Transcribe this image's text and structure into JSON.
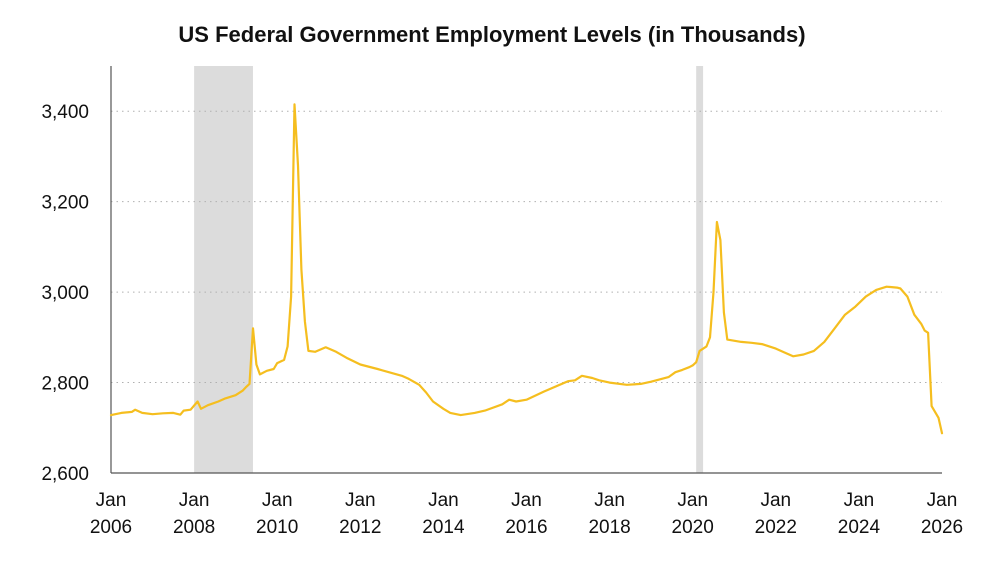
{
  "colors": {
    "line": "#F5BE1F",
    "recession": "#DCDCDC",
    "grid": "#B0B0B0",
    "axis": "#555555",
    "text": "#111111"
  },
  "chart_data": {
    "type": "line",
    "title": "US Federal Government Employment Levels (in Thousands)",
    "xlabel": "",
    "ylabel": "",
    "x_range": [
      "2006-01",
      "2026-01"
    ],
    "ylim": [
      2600,
      3500
    ],
    "grid": "horizontal dotted",
    "y_ticks": [
      {
        "value": 2600,
        "label": "2,600"
      },
      {
        "value": 2800,
        "label": "2,800"
      },
      {
        "value": 3000,
        "label": "3,000"
      },
      {
        "value": 3200,
        "label": "3,200"
      },
      {
        "value": 3400,
        "label": "3,400"
      }
    ],
    "x_ticks": [
      {
        "date": "2006-01",
        "month": "Jan",
        "year": "2006"
      },
      {
        "date": "2008-01",
        "month": "Jan",
        "year": "2008"
      },
      {
        "date": "2010-01",
        "month": "Jan",
        "year": "2010"
      },
      {
        "date": "2012-01",
        "month": "Jan",
        "year": "2012"
      },
      {
        "date": "2014-01",
        "month": "Jan",
        "year": "2014"
      },
      {
        "date": "2016-01",
        "month": "Jan",
        "year": "2016"
      },
      {
        "date": "2018-01",
        "month": "Jan",
        "year": "2018"
      },
      {
        "date": "2020-01",
        "month": "Jan",
        "year": "2020"
      },
      {
        "date": "2022-01",
        "month": "Jan",
        "year": "2022"
      },
      {
        "date": "2024-01",
        "month": "Jan",
        "year": "2024"
      },
      {
        "date": "2026-01",
        "month": "Jan",
        "year": "2026"
      }
    ],
    "shaded_periods": [
      {
        "start": "2008-01",
        "end": "2009-06"
      },
      {
        "start": "2020-02",
        "end": "2020-04"
      }
    ],
    "series": [
      {
        "color": "#F5BE1F",
        "points": [
          [
            "2006-01",
            2728
          ],
          [
            "2006-04",
            2733
          ],
          [
            "2006-07",
            2735
          ],
          [
            "2006-08",
            2740
          ],
          [
            "2006-10",
            2733
          ],
          [
            "2007-01",
            2730
          ],
          [
            "2007-04",
            2732
          ],
          [
            "2007-07",
            2733
          ],
          [
            "2007-09",
            2729
          ],
          [
            "2007-10",
            2738
          ],
          [
            "2007-12",
            2740
          ],
          [
            "2008-02",
            2758
          ],
          [
            "2008-03",
            2742
          ],
          [
            "2008-05",
            2750
          ],
          [
            "2008-08",
            2758
          ],
          [
            "2008-10",
            2765
          ],
          [
            "2009-01",
            2772
          ],
          [
            "2009-03",
            2782
          ],
          [
            "2009-04",
            2790
          ],
          [
            "2009-05",
            2797
          ],
          [
            "2009-06",
            2920
          ],
          [
            "2009-07",
            2840
          ],
          [
            "2009-08",
            2818
          ],
          [
            "2009-10",
            2826
          ],
          [
            "2009-12",
            2830
          ],
          [
            "2010-01",
            2843
          ],
          [
            "2010-03",
            2850
          ],
          [
            "2010-04",
            2880
          ],
          [
            "2010-05",
            2990
          ],
          [
            "2010-06",
            3415
          ],
          [
            "2010-07",
            3280
          ],
          [
            "2010-08",
            3050
          ],
          [
            "2010-09",
            2935
          ],
          [
            "2010-10",
            2870
          ],
          [
            "2010-12",
            2868
          ],
          [
            "2011-03",
            2878
          ],
          [
            "2011-06",
            2868
          ],
          [
            "2011-09",
            2855
          ],
          [
            "2012-01",
            2840
          ],
          [
            "2012-06",
            2830
          ],
          [
            "2013-01",
            2815
          ],
          [
            "2013-03",
            2808
          ],
          [
            "2013-06",
            2795
          ],
          [
            "2013-08",
            2778
          ],
          [
            "2013-10",
            2758
          ],
          [
            "2014-01",
            2742
          ],
          [
            "2014-03",
            2733
          ],
          [
            "2014-06",
            2728
          ],
          [
            "2014-10",
            2733
          ],
          [
            "2015-01",
            2738
          ],
          [
            "2015-06",
            2752
          ],
          [
            "2015-08",
            2762
          ],
          [
            "2015-10",
            2758
          ],
          [
            "2016-01",
            2762
          ],
          [
            "2016-06",
            2780
          ],
          [
            "2017-01",
            2803
          ],
          [
            "2017-03",
            2805
          ],
          [
            "2017-05",
            2815
          ],
          [
            "2017-08",
            2810
          ],
          [
            "2017-10",
            2805
          ],
          [
            "2018-01",
            2800
          ],
          [
            "2018-06",
            2795
          ],
          [
            "2018-10",
            2797
          ],
          [
            "2019-01",
            2802
          ],
          [
            "2019-06",
            2812
          ],
          [
            "2019-08",
            2823
          ],
          [
            "2019-10",
            2828
          ],
          [
            "2019-12",
            2834
          ],
          [
            "2020-01",
            2838
          ],
          [
            "2020-02",
            2845
          ],
          [
            "2020-03",
            2870
          ],
          [
            "2020-05",
            2880
          ],
          [
            "2020-06",
            2900
          ],
          [
            "2020-07",
            3000
          ],
          [
            "2020-08",
            3155
          ],
          [
            "2020-09",
            3115
          ],
          [
            "2020-10",
            2955
          ],
          [
            "2020-11",
            2895
          ],
          [
            "2021-03",
            2890
          ],
          [
            "2021-06",
            2888
          ],
          [
            "2021-09",
            2885
          ],
          [
            "2022-01",
            2875
          ],
          [
            "2022-04",
            2865
          ],
          [
            "2022-06",
            2858
          ],
          [
            "2022-09",
            2862
          ],
          [
            "2022-12",
            2870
          ],
          [
            "2023-03",
            2890
          ],
          [
            "2023-06",
            2920
          ],
          [
            "2023-09",
            2950
          ],
          [
            "2023-12",
            2968
          ],
          [
            "2024-03",
            2990
          ],
          [
            "2024-06",
            3005
          ],
          [
            "2024-09",
            3012
          ],
          [
            "2024-12",
            3010
          ],
          [
            "2025-01",
            3008
          ],
          [
            "2025-03",
            2990
          ],
          [
            "2025-05",
            2950
          ],
          [
            "2025-07",
            2930
          ],
          [
            "2025-08",
            2915
          ],
          [
            "2025-09",
            2910
          ],
          [
            "2025-10",
            2748
          ],
          [
            "2025-12",
            2722
          ],
          [
            "2026-01",
            2688
          ]
        ]
      }
    ]
  }
}
